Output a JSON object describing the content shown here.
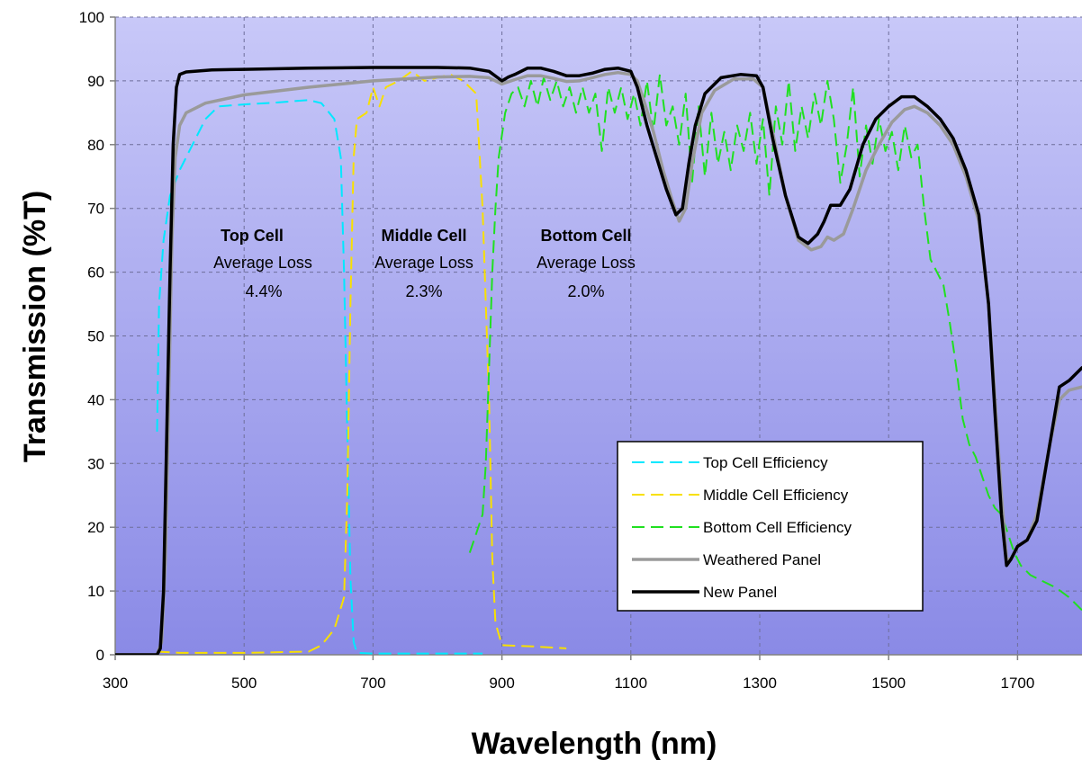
{
  "chart_data": {
    "type": "line",
    "xlabel": "Wavelength (nm)",
    "ylabel": "Transmission (%T)",
    "xlim": [
      300,
      1800
    ],
    "ylim": [
      0,
      100
    ],
    "x_ticks": [
      300,
      500,
      700,
      900,
      1100,
      1300,
      1500,
      1700
    ],
    "y_ticks": [
      0,
      10,
      20,
      30,
      40,
      50,
      60,
      70,
      80,
      90,
      100
    ],
    "grid": true,
    "legend_position": "bottom-right",
    "background_gradient": [
      "#c8c8f8",
      "#8a8ae6"
    ],
    "annotations": [
      {
        "title": "Top Cell",
        "line1": "Average Loss",
        "line2": "4.4%"
      },
      {
        "title": "Middle Cell",
        "line1": "Average Loss",
        "line2": "2.3%"
      },
      {
        "title": "Bottom Cell",
        "line1": "Average Loss",
        "line2": "2.0%"
      }
    ],
    "series": [
      {
        "name": "Top Cell Efficiency",
        "color": "#00e8ff",
        "style": "dashed",
        "points": [
          [
            365,
            35
          ],
          [
            368,
            55
          ],
          [
            375,
            65
          ],
          [
            385,
            72
          ],
          [
            400,
            76
          ],
          [
            420,
            80
          ],
          [
            440,
            84
          ],
          [
            460,
            86
          ],
          [
            500,
            86.3
          ],
          [
            550,
            86.6
          ],
          [
            600,
            87
          ],
          [
            620,
            86.5
          ],
          [
            640,
            84
          ],
          [
            650,
            78
          ],
          [
            655,
            60
          ],
          [
            660,
            35
          ],
          [
            665,
            12
          ],
          [
            670,
            2
          ],
          [
            675,
            0.3
          ],
          [
            700,
            0.2
          ],
          [
            800,
            0.2
          ],
          [
            870,
            0.2
          ]
        ]
      },
      {
        "name": "Middle Cell Efficiency",
        "color": "#f8e000",
        "style": "dashed",
        "points": [
          [
            365,
            0.5
          ],
          [
            400,
            0.3
          ],
          [
            500,
            0.3
          ],
          [
            600,
            0.5
          ],
          [
            620,
            1.5
          ],
          [
            640,
            4
          ],
          [
            655,
            9
          ],
          [
            660,
            25
          ],
          [
            665,
            55
          ],
          [
            670,
            78
          ],
          [
            675,
            84
          ],
          [
            690,
            85
          ],
          [
            700,
            89
          ],
          [
            710,
            86
          ],
          [
            720,
            89
          ],
          [
            740,
            90
          ],
          [
            760,
            91.5
          ],
          [
            780,
            90
          ],
          [
            800,
            90.5
          ],
          [
            820,
            91
          ],
          [
            840,
            90
          ],
          [
            860,
            88
          ],
          [
            870,
            70
          ],
          [
            880,
            40
          ],
          [
            885,
            15
          ],
          [
            890,
            5
          ],
          [
            900,
            1.5
          ],
          [
            950,
            1.3
          ],
          [
            1000,
            1
          ]
        ]
      },
      {
        "name": "Bottom Cell Efficiency",
        "color": "#20e020",
        "style": "dashed",
        "points": [
          [
            850,
            16
          ],
          [
            860,
            19
          ],
          [
            870,
            22
          ],
          [
            875,
            30
          ],
          [
            880,
            45
          ],
          [
            885,
            60
          ],
          [
            890,
            70
          ],
          [
            895,
            78
          ],
          [
            905,
            85
          ],
          [
            915,
            88
          ],
          [
            925,
            89
          ],
          [
            935,
            86
          ],
          [
            945,
            90
          ],
          [
            955,
            86
          ],
          [
            965,
            90.5
          ],
          [
            975,
            87
          ],
          [
            985,
            90
          ],
          [
            995,
            86
          ],
          [
            1005,
            89
          ],
          [
            1015,
            85
          ],
          [
            1025,
            89
          ],
          [
            1035,
            85
          ],
          [
            1045,
            88
          ],
          [
            1055,
            79
          ],
          [
            1065,
            89
          ],
          [
            1075,
            85
          ],
          [
            1085,
            89
          ],
          [
            1095,
            84
          ],
          [
            1105,
            88
          ],
          [
            1115,
            83
          ],
          [
            1125,
            90
          ],
          [
            1135,
            82
          ],
          [
            1145,
            91
          ],
          [
            1155,
            83
          ],
          [
            1165,
            86
          ],
          [
            1175,
            80
          ],
          [
            1185,
            88
          ],
          [
            1195,
            74
          ],
          [
            1205,
            86
          ],
          [
            1215,
            75
          ],
          [
            1225,
            85
          ],
          [
            1235,
            77
          ],
          [
            1245,
            82
          ],
          [
            1255,
            76
          ],
          [
            1265,
            83
          ],
          [
            1275,
            79
          ],
          [
            1285,
            85
          ],
          [
            1295,
            77
          ],
          [
            1305,
            84
          ],
          [
            1315,
            72
          ],
          [
            1325,
            86
          ],
          [
            1335,
            80
          ],
          [
            1345,
            90
          ],
          [
            1355,
            79
          ],
          [
            1365,
            86
          ],
          [
            1375,
            81
          ],
          [
            1385,
            88
          ],
          [
            1395,
            83
          ],
          [
            1405,
            90
          ],
          [
            1415,
            84
          ],
          [
            1425,
            74
          ],
          [
            1435,
            80
          ],
          [
            1445,
            89
          ],
          [
            1455,
            75
          ],
          [
            1465,
            83
          ],
          [
            1475,
            77
          ],
          [
            1485,
            84
          ],
          [
            1495,
            79
          ],
          [
            1505,
            82
          ],
          [
            1515,
            76
          ],
          [
            1525,
            83
          ],
          [
            1535,
            78
          ],
          [
            1545,
            80
          ],
          [
            1555,
            70
          ],
          [
            1565,
            62
          ],
          [
            1575,
            60
          ],
          [
            1585,
            58
          ],
          [
            1595,
            52
          ],
          [
            1605,
            45
          ],
          [
            1615,
            37
          ],
          [
            1625,
            33
          ],
          [
            1635,
            31
          ],
          [
            1645,
            28
          ],
          [
            1655,
            25
          ],
          [
            1665,
            23
          ],
          [
            1675,
            22
          ],
          [
            1685,
            19
          ],
          [
            1695,
            16
          ],
          [
            1705,
            14
          ],
          [
            1720,
            12.5
          ],
          [
            1740,
            11.5
          ],
          [
            1760,
            10.5
          ],
          [
            1780,
            9
          ],
          [
            1800,
            7
          ]
        ]
      },
      {
        "name": "Weathered Panel",
        "color": "#9a9a9a",
        "style": "solid",
        "points": [
          [
            300,
            0
          ],
          [
            365,
            0
          ],
          [
            372,
            2
          ],
          [
            378,
            15
          ],
          [
            383,
            40
          ],
          [
            388,
            65
          ],
          [
            393,
            78
          ],
          [
            400,
            83
          ],
          [
            410,
            85
          ],
          [
            440,
            86.5
          ],
          [
            500,
            87.8
          ],
          [
            600,
            89
          ],
          [
            700,
            90
          ],
          [
            800,
            90.6
          ],
          [
            850,
            90.7
          ],
          [
            880,
            90.5
          ],
          [
            900,
            89.5
          ],
          [
            920,
            90.2
          ],
          [
            940,
            90.8
          ],
          [
            960,
            90.8
          ],
          [
            980,
            90.4
          ],
          [
            1000,
            89.9
          ],
          [
            1020,
            90
          ],
          [
            1040,
            90.5
          ],
          [
            1060,
            91
          ],
          [
            1080,
            91.3
          ],
          [
            1100,
            91
          ],
          [
            1110,
            90
          ],
          [
            1120,
            87
          ],
          [
            1135,
            82
          ],
          [
            1150,
            76
          ],
          [
            1165,
            71
          ],
          [
            1175,
            68
          ],
          [
            1185,
            70
          ],
          [
            1195,
            77
          ],
          [
            1210,
            85
          ],
          [
            1230,
            88.5
          ],
          [
            1260,
            90.3
          ],
          [
            1290,
            90.3
          ],
          [
            1305,
            89
          ],
          [
            1320,
            82
          ],
          [
            1340,
            72
          ],
          [
            1360,
            65
          ],
          [
            1380,
            63.5
          ],
          [
            1395,
            64
          ],
          [
            1405,
            65.5
          ],
          [
            1415,
            65
          ],
          [
            1430,
            66
          ],
          [
            1445,
            70
          ],
          [
            1465,
            76
          ],
          [
            1485,
            80
          ],
          [
            1505,
            83.5
          ],
          [
            1525,
            85.5
          ],
          [
            1540,
            86
          ],
          [
            1560,
            85
          ],
          [
            1580,
            83
          ],
          [
            1600,
            80
          ],
          [
            1620,
            75
          ],
          [
            1640,
            68
          ],
          [
            1655,
            55
          ],
          [
            1665,
            40
          ],
          [
            1675,
            25
          ],
          [
            1683,
            15
          ],
          [
            1690,
            15
          ],
          [
            1700,
            17
          ],
          [
            1715,
            18
          ],
          [
            1730,
            22
          ],
          [
            1750,
            33
          ],
          [
            1765,
            40
          ],
          [
            1780,
            41.5
          ],
          [
            1800,
            42
          ]
        ]
      },
      {
        "name": "New Panel",
        "color": "#000000",
        "style": "solid",
        "points": [
          [
            300,
            0
          ],
          [
            365,
            0
          ],
          [
            370,
            1
          ],
          [
            375,
            10
          ],
          [
            380,
            35
          ],
          [
            385,
            60
          ],
          [
            390,
            80
          ],
          [
            395,
            89
          ],
          [
            400,
            91
          ],
          [
            410,
            91.4
          ],
          [
            450,
            91.7
          ],
          [
            500,
            91.8
          ],
          [
            600,
            92
          ],
          [
            700,
            92.1
          ],
          [
            800,
            92.1
          ],
          [
            850,
            92
          ],
          [
            880,
            91.5
          ],
          [
            900,
            90
          ],
          [
            910,
            90.6
          ],
          [
            920,
            91
          ],
          [
            940,
            92
          ],
          [
            960,
            92
          ],
          [
            980,
            91.5
          ],
          [
            1000,
            90.8
          ],
          [
            1020,
            90.8
          ],
          [
            1040,
            91.2
          ],
          [
            1060,
            91.8
          ],
          [
            1080,
            92
          ],
          [
            1100,
            91.5
          ],
          [
            1110,
            89
          ],
          [
            1125,
            83
          ],
          [
            1140,
            78
          ],
          [
            1155,
            73
          ],
          [
            1170,
            69
          ],
          [
            1180,
            70
          ],
          [
            1190,
            77
          ],
          [
            1200,
            83
          ],
          [
            1215,
            88
          ],
          [
            1240,
            90.5
          ],
          [
            1270,
            91
          ],
          [
            1295,
            90.8
          ],
          [
            1305,
            89
          ],
          [
            1320,
            81
          ],
          [
            1340,
            72
          ],
          [
            1360,
            65.5
          ],
          [
            1375,
            64.5
          ],
          [
            1390,
            66
          ],
          [
            1400,
            68
          ],
          [
            1410,
            70.5
          ],
          [
            1425,
            70.5
          ],
          [
            1440,
            73
          ],
          [
            1460,
            80
          ],
          [
            1480,
            84
          ],
          [
            1500,
            86
          ],
          [
            1520,
            87.5
          ],
          [
            1540,
            87.5
          ],
          [
            1560,
            86
          ],
          [
            1580,
            84
          ],
          [
            1600,
            81
          ],
          [
            1620,
            76
          ],
          [
            1640,
            69
          ],
          [
            1655,
            55
          ],
          [
            1665,
            38
          ],
          [
            1675,
            22
          ],
          [
            1683,
            14
          ],
          [
            1690,
            15
          ],
          [
            1700,
            17
          ],
          [
            1715,
            18
          ],
          [
            1730,
            21
          ],
          [
            1750,
            33
          ],
          [
            1765,
            42
          ],
          [
            1780,
            43
          ],
          [
            1800,
            45
          ]
        ]
      }
    ]
  }
}
